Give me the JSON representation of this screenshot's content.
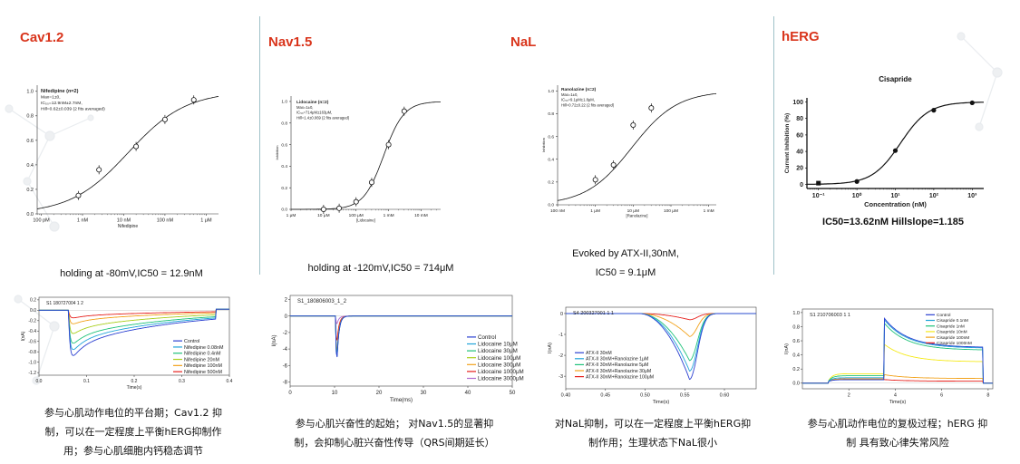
{
  "panels": [
    {
      "title": "Cav1.2",
      "condition": "holding at -80mV,IC50 = 12.9nM",
      "description": [
        "参与心肌动作电位的平台期；Cav1.2 抑",
        "制，可以在一定程度上平衡hERG抑制作",
        "用；参与心肌细胞内钙稳态调节"
      ]
    },
    {
      "title": "Nav1.5",
      "condition": "holding at -120mV,IC50 = 714μM",
      "description": [
        "参与心肌兴奋性的起始；  对Nav1.5的显著抑",
        "制，会抑制心脏兴奋性传导（QRS间期延长）"
      ]
    },
    {
      "title": "NaL",
      "condition": "Evoked by ATX-II,30nM,",
      "condition2": "IC50 = 9.1μM",
      "description": [
        "对NaL抑制，可以在一定程度上平衡hERG抑",
        "制作用；生理状态下NaL很小"
      ]
    },
    {
      "title": "hERG",
      "condition": "IC50=13.62nM  Hillslope=1.185",
      "description": [
        "参与心肌动作电位的复极过程；hERG 抑",
        "制 具有致心律失常风险"
      ]
    }
  ],
  "chart_data": [
    {
      "type": "scatter",
      "name": "cav-dose-response",
      "annotation": [
        "Nifedipine (n=2)",
        "Max=1±0,",
        "IC₅₀=12.9nM±2.7nM,",
        "Hill=0.62±0.039 (2 fits averaged)"
      ],
      "xlabel": "Nifedipine",
      "xticks": [
        "100 pM",
        "1 nM",
        "10 nM",
        "100 nM",
        "1 μM"
      ],
      "yticks": [
        "0.0",
        "0.2",
        "0.4",
        "0.6",
        "0.8",
        "1.0"
      ],
      "xlog": true,
      "xlim_log10": [
        -10.1,
        -5.7
      ],
      "ylim": [
        0,
        1.05
      ],
      "points": [
        {
          "x_log10": -9.1,
          "y": 0.15
        },
        {
          "x_log10": -8.6,
          "y": 0.36
        },
        {
          "x_log10": -7.7,
          "y": 0.55
        },
        {
          "x_log10": -7.0,
          "y": 0.77
        },
        {
          "x_log10": -6.3,
          "y": 0.93
        }
      ],
      "fit": {
        "ic50_log10": -7.89,
        "hill": 0.62
      }
    },
    {
      "type": "line",
      "name": "cav-traces",
      "annotation": "S1  180727004  1  2",
      "xlabel": "Time(s)",
      "ylabel": "I(nA)",
      "xticks": [
        "0.0",
        "0.1",
        "0.2",
        "0.3",
        "0.4"
      ],
      "yticks": [
        "0.2",
        "0.0",
        "-0.2",
        "-0.4",
        "-0.6",
        "-0.8",
        "-1.0",
        "-1.2"
      ],
      "xlim": [
        0,
        0.4
      ],
      "ylim": [
        -1.25,
        0.25
      ],
      "series": [
        {
          "name": "Control",
          "color": "#2a3fd1",
          "peak": -1.07
        },
        {
          "name": "Nifedipine  0.08nM",
          "color": "#1fa3d8",
          "peak": -0.93
        },
        {
          "name": "Nifedipine  0.4nM",
          "color": "#1ec27a",
          "peak": -0.78
        },
        {
          "name": "Nifedipine  20nM",
          "color": "#a9cf1c",
          "peak": -0.55
        },
        {
          "name": "Nifedipine  100nM",
          "color": "#f2a21b",
          "peak": -0.32
        },
        {
          "name": "Nifedipine  500nM",
          "color": "#e6201c",
          "peak": -0.18
        }
      ]
    },
    {
      "type": "scatter",
      "name": "nav-dose-response",
      "annotation": [
        "Lidocaine (n=2)",
        "Max=1±0,",
        "IC₅₀=714μM±163μM,",
        "Hill=1.4±0.069 (2 fits averaged)"
      ],
      "xlabel": "[Lidocaine]",
      "ylabel": "Inhibition",
      "xticks": [
        "1 μM",
        "10 μM",
        "100 μM",
        "1 mM",
        "10 mM"
      ],
      "yticks": [
        "0.0",
        "0.2",
        "0.4",
        "0.6",
        "0.8",
        "1.0"
      ],
      "xlog": true,
      "xlim_log10": [
        -6.0,
        -1.4
      ],
      "ylim": [
        0,
        1.05
      ],
      "points": [
        {
          "x_log10": -5.0,
          "y": 0.0
        },
        {
          "x_log10": -4.52,
          "y": 0.01
        },
        {
          "x_log10": -4.0,
          "y": 0.07
        },
        {
          "x_log10": -3.52,
          "y": 0.25
        },
        {
          "x_log10": -3.0,
          "y": 0.6
        },
        {
          "x_log10": -2.52,
          "y": 0.91
        }
      ],
      "fit": {
        "ic50_log10": -3.15,
        "hill": 1.4
      }
    },
    {
      "type": "line",
      "name": "nav-traces",
      "annotation": "S1_180806003_1_2",
      "xlabel": "Time(ms)",
      "ylabel": "I(nA)",
      "xticks": [
        "0",
        "10",
        "20",
        "30",
        "40",
        "50"
      ],
      "yticks": [
        "2",
        "0",
        "-2",
        "-4",
        "-6",
        "-8"
      ],
      "xlim": [
        0,
        50
      ],
      "ylim": [
        -8.5,
        2.5
      ],
      "series": [
        {
          "name": "Control",
          "color": "#2a3fd1",
          "peak": -6.6
        },
        {
          "name": "Lidocaine  10μM",
          "color": "#1fa3d8",
          "peak": -6.5
        },
        {
          "name": "Lidocaine  30μM",
          "color": "#1ec27a",
          "peak": -6.4
        },
        {
          "name": "Lidocaine  100μM",
          "color": "#a9cf1c",
          "peak": -6.1
        },
        {
          "name": "Lidocaine  300μM",
          "color": "#f2a21b",
          "peak": -5.5
        },
        {
          "name": "Lidocaine  1000μM",
          "color": "#e6201c",
          "peak": -3.9
        },
        {
          "name": "Lidocaine  3000μM",
          "color": "#b06bd0",
          "peak": -1.2
        }
      ]
    },
    {
      "type": "scatter",
      "name": "nal-dose-response",
      "annotation": [
        "Ranolazine (n=2)",
        "Max=1±0,",
        "IC₅₀=9.1μM±1.8μM,",
        "Hill=0.72±0.22 (2 fits averaged)"
      ],
      "xlabel": "[Ranolazine]",
      "ylabel": "Inhibition",
      "xticks": [
        "100 nM",
        "1 μM",
        "10 μM",
        "100 μM",
        "1 mM"
      ],
      "yticks": [
        "0.0",
        "0.2",
        "0.4",
        "0.6",
        "0.8",
        "1.0"
      ],
      "xlog": true,
      "xlim_log10": [
        -7.0,
        -2.8
      ],
      "ylim": [
        0,
        1.05
      ],
      "points": [
        {
          "x_log10": -6.0,
          "y": 0.22
        },
        {
          "x_log10": -5.52,
          "y": 0.35
        },
        {
          "x_log10": -5.0,
          "y": 0.7
        },
        {
          "x_log10": -4.52,
          "y": 0.85
        }
      ],
      "fit": {
        "ic50_log10": -5.04,
        "hill": 0.72
      }
    },
    {
      "type": "line",
      "name": "nal-traces",
      "annotation": "S4  200327001  1  1",
      "xlabel": "Time(s)",
      "ylabel": "I(nA)",
      "xticks": [
        "0.40",
        "0.45",
        "0.50",
        "0.55",
        "0.60"
      ],
      "yticks": [
        "0",
        "-1",
        "-2",
        "-3"
      ],
      "xlim": [
        0.4,
        0.64
      ],
      "ylim": [
        -3.6,
        0.3
      ],
      "series": [
        {
          "name": "ATX-II 30nM",
          "color": "#2a3fd1",
          "peak": -3.15
        },
        {
          "name": "ATX-II 30nM+Ranolazine 1μM",
          "color": "#1fa3d8",
          "peak": -2.75
        },
        {
          "name": "ATX-II 30nM+Ranolazine 5μM",
          "color": "#1ec27a",
          "peak": -2.25
        },
        {
          "name": "ATX-II 30nM+Ranolazine 30μM",
          "color": "#f2a21b",
          "peak": -1.1
        },
        {
          "name": "ATX-II 30nM+Ranolazine 100μM",
          "color": "#e6201c",
          "peak": -0.3
        }
      ]
    },
    {
      "type": "scatter",
      "name": "herg-dose-response",
      "title": "Cisapride",
      "xlabel": "Concentration (nM)",
      "ylabel": "Current Inhibition (%)",
      "xticks": [
        "10⁻¹",
        "10⁰",
        "10¹",
        "10²",
        "10³"
      ],
      "yticks": [
        "0",
        "20",
        "40",
        "60",
        "80",
        "100"
      ],
      "xlog": true,
      "xlim_log10": [
        -1.3,
        3.3
      ],
      "ylim": [
        -5,
        105
      ],
      "points": [
        {
          "x_log10": -1.0,
          "y": 1.5
        },
        {
          "x_log10": 0.0,
          "y": 3.5
        },
        {
          "x_log10": 1.0,
          "y": 41.0
        },
        {
          "x_log10": 2.0,
          "y": 90.0
        },
        {
          "x_log10": 3.0,
          "y": 99.0
        }
      ],
      "fit": {
        "ic50_log10": 1.134,
        "hill": 1.185
      }
    },
    {
      "type": "line",
      "name": "herg-traces",
      "annotation": "S1  210706003  1  1",
      "xlabel": "Time(s)",
      "ylabel": "I(nA)",
      "xticks": [
        "2",
        "4",
        "6",
        "8"
      ],
      "yticks": [
        "1.0",
        "0.8",
        "0.6",
        "0.4",
        "0.2",
        "0.0"
      ],
      "xlim": [
        0,
        8.2
      ],
      "ylim": [
        -0.08,
        1.05
      ],
      "series": [
        {
          "name": "Control",
          "color": "#2a3fd1",
          "peak": 0.92
        },
        {
          "name": "Cisapride  0.1nM",
          "color": "#1fa3d8",
          "peak": 0.9
        },
        {
          "name": "Cisapride  1nM",
          "color": "#1ec27a",
          "peak": 0.85
        },
        {
          "name": "Cisapride  10nM",
          "color": "#f5ea1a",
          "peak": 0.55
        },
        {
          "name": "Cisapride  100nM",
          "color": "#f2a21b",
          "peak": 0.12
        },
        {
          "name": "Cisapride  1000nM",
          "color": "#e6201c",
          "peak": 0.05
        }
      ]
    }
  ]
}
